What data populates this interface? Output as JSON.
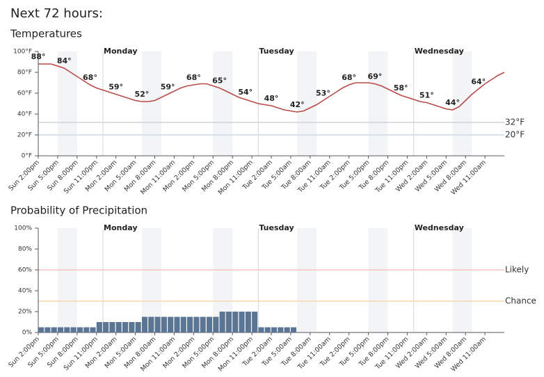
{
  "heading": "Next 72 hours:",
  "chart_data": [
    {
      "type": "line",
      "title": "Temperatures",
      "color": "#b94a48",
      "categories": [
        "Sun 2:00pm",
        null,
        null,
        "Sun 5:00pm",
        null,
        null,
        "Sun 8:00pm",
        null,
        null,
        "Sun 11:00pm",
        null,
        null,
        "Mon 2:00am",
        null,
        null,
        "Mon 5:00am",
        null,
        null,
        "Mon 8:00am",
        null,
        null,
        "Mon 11:00am",
        null,
        null,
        "Mon 2:00pm",
        null,
        null,
        "Mon 5:00pm",
        null,
        null,
        "Mon 8:00pm",
        null,
        null,
        "Mon 11:00pm",
        null,
        null,
        "Tue 2:00am",
        null,
        null,
        "Tue 5:00am",
        null,
        null,
        "Tue 8:00am",
        null,
        null,
        "Tue 11:00am",
        null,
        null,
        "Tue 2:00pm",
        null,
        null,
        "Tue 5:00pm",
        null,
        null,
        "Tue 8:00pm",
        null,
        null,
        "Tue 11:00pm",
        null,
        null,
        "Wed 2:00am",
        null,
        null,
        "Wed 5:00am",
        null,
        null,
        "Wed 8:00am",
        null,
        null,
        "Wed 11:00am",
        null,
        null,
        null
      ],
      "values": [
        88,
        88,
        88,
        86,
        84,
        80,
        76,
        72,
        68,
        65,
        63,
        61,
        59,
        57,
        55,
        53,
        52,
        52,
        53,
        56,
        59,
        62,
        65,
        67,
        68,
        69,
        69,
        67,
        65,
        62,
        59,
        56,
        54,
        52,
        50,
        49,
        48,
        46,
        44,
        43,
        42,
        43,
        46,
        49,
        53,
        57,
        61,
        65,
        68,
        70,
        70,
        70,
        69,
        67,
        64,
        61,
        58,
        56,
        54,
        52,
        51,
        49,
        47,
        45,
        44,
        47,
        53,
        59,
        64,
        69,
        73,
        77,
        80
      ],
      "value_labels": [
        "88°",
        null,
        null,
        null,
        "84°",
        null,
        null,
        null,
        "68°",
        null,
        null,
        null,
        "59°",
        null,
        null,
        null,
        "52°",
        null,
        null,
        null,
        "59°",
        null,
        null,
        null,
        "68°",
        null,
        null,
        null,
        "65°",
        null,
        null,
        null,
        "54°",
        null,
        null,
        null,
        "48°",
        null,
        null,
        null,
        "42°",
        null,
        null,
        null,
        "53°",
        null,
        null,
        null,
        "68°",
        null,
        null,
        null,
        "69°",
        null,
        null,
        null,
        "58°",
        null,
        null,
        null,
        "51°",
        null,
        null,
        null,
        "44°",
        null,
        null,
        null,
        "64°",
        null,
        null,
        null,
        null
      ],
      "ylim": [
        0,
        100
      ],
      "yticks": [
        {
          "value": 0,
          "label": "0°F"
        },
        {
          "value": 20,
          "label": "20°F"
        },
        {
          "value": 40,
          "label": "40°F"
        },
        {
          "value": 60,
          "label": "60°F"
        },
        {
          "value": 80,
          "label": "80°F"
        },
        {
          "value": 100,
          "label": "100°F"
        }
      ],
      "reference_lines": [
        {
          "value": 32,
          "label": "32°F",
          "color": "#6f8fae",
          "line_color": "#cfd3d8"
        },
        {
          "value": 20,
          "label": "20°F",
          "color": "#6f8fae",
          "line_color": "#c9dced"
        }
      ],
      "days": [
        {
          "label": "Monday",
          "index": 10
        },
        {
          "label": "Tuesday",
          "index": 34
        },
        {
          "label": "Wednesday",
          "index": 58
        }
      ]
    },
    {
      "type": "bar",
      "title": "Probability of Precipitation",
      "color": "#5b7595",
      "categories": [
        "Sun 2:00pm",
        null,
        null,
        "Sun 5:00pm",
        null,
        null,
        "Sun 8:00pm",
        null,
        null,
        "Sun 11:00pm",
        null,
        null,
        "Mon 2:00am",
        null,
        null,
        "Mon 5:00am",
        null,
        null,
        "Mon 8:00am",
        null,
        null,
        "Mon 11:00am",
        null,
        null,
        "Mon 2:00pm",
        null,
        null,
        "Mon 5:00pm",
        null,
        null,
        "Mon 8:00pm",
        null,
        null,
        "Mon 11:00pm",
        null,
        null,
        "Tue 2:00am",
        null,
        null,
        "Tue 5:00am",
        null,
        null,
        "Tue 8:00am",
        null,
        null,
        "Tue 11:00am",
        null,
        null,
        "Tue 2:00pm",
        null,
        null,
        "Tue 5:00pm",
        null,
        null,
        "Tue 8:00pm",
        null,
        null,
        "Tue 11:00pm",
        null,
        null,
        "Wed 2:00am",
        null,
        null,
        "Wed 5:00am",
        null,
        null,
        "Wed 8:00am",
        null,
        null,
        "Wed 11:00am",
        null,
        null,
        null
      ],
      "values": [
        5,
        5,
        5,
        5,
        5,
        5,
        5,
        5,
        5,
        10,
        10,
        10,
        10,
        10,
        10,
        10,
        15,
        15,
        15,
        15,
        15,
        15,
        15,
        15,
        15,
        15,
        15,
        15,
        20,
        20,
        20,
        20,
        20,
        20,
        5,
        5,
        5,
        5,
        5,
        5,
        0,
        0,
        0,
        0,
        0,
        0,
        0,
        0,
        0,
        0,
        0,
        0,
        0,
        0,
        0,
        0,
        0,
        0,
        0,
        0,
        0,
        0,
        0,
        0,
        0,
        0,
        0,
        0,
        0,
        0,
        0,
        0,
        0
      ],
      "ylim": [
        0,
        100
      ],
      "yticks": [
        {
          "value": 0,
          "label": "0%"
        },
        {
          "value": 20,
          "label": "20%"
        },
        {
          "value": 40,
          "label": "40%"
        },
        {
          "value": 60,
          "label": "60%"
        },
        {
          "value": 80,
          "label": "80%"
        },
        {
          "value": 100,
          "label": "100%"
        }
      ],
      "reference_lines": [
        {
          "value": 60,
          "label": "Likely",
          "color": "#c0392b",
          "line_color": "#f3c4c2"
        },
        {
          "value": 30,
          "label": "Chance",
          "color": "#e67e22",
          "line_color": "#f6d8a9"
        }
      ],
      "days": [
        {
          "label": "Monday",
          "index": 10
        },
        {
          "label": "Tuesday",
          "index": 34
        },
        {
          "label": "Wednesday",
          "index": 58
        }
      ]
    }
  ]
}
